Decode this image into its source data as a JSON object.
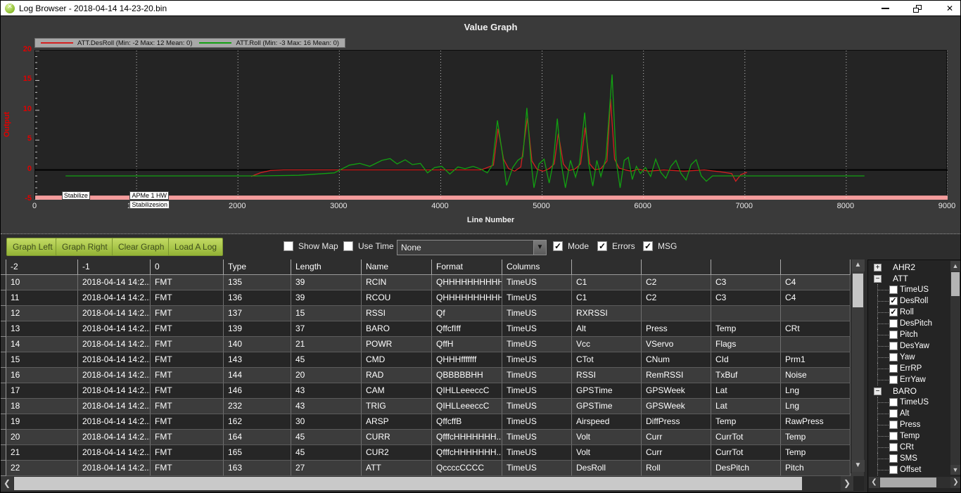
{
  "window": {
    "title": "Log Browser - 2018-04-14 14-23-20.bin"
  },
  "icons": {
    "app": "green-sphere",
    "minimize": "minimize-bar",
    "restore": "restore-squares",
    "close": "✕",
    "dropdown_arrow": "▼",
    "check": "✓",
    "expand": "+",
    "collapse": "−",
    "scroll_up": "▲",
    "scroll_down": "▼",
    "scroll_left": "❮",
    "scroll_right": "❯"
  },
  "chart_data": {
    "type": "line",
    "title": "Value Graph",
    "xlabel": "Line Number",
    "ylabel": "Output",
    "xlim": [
      0,
      9000
    ],
    "ylim": [
      -5,
      20
    ],
    "xticks": [
      0,
      1000,
      2000,
      3000,
      4000,
      5000,
      6000,
      7000,
      8000,
      9000
    ],
    "yticks": [
      -5,
      0,
      5,
      10,
      15,
      20
    ],
    "grid": "vertical-dotted",
    "legend_position": "top-left",
    "series": [
      {
        "name": "ATT.DesRoll (Min: -2 Max: 12 Mean: 0)",
        "color": "#d42020",
        "points": [
          [
            2130,
            -1.1
          ],
          [
            2220,
            -0.5
          ],
          [
            2320,
            -0.1
          ],
          [
            2450,
            0
          ],
          [
            3500,
            0
          ],
          [
            4400,
            0
          ],
          [
            4520,
            0.8
          ],
          [
            4565,
            6.9
          ],
          [
            4620,
            1.8
          ],
          [
            4670,
            0.2
          ],
          [
            4730,
            -0.2
          ],
          [
            4790,
            0.5
          ],
          [
            4855,
            8.7
          ],
          [
            4900,
            1.5
          ],
          [
            4950,
            0.1
          ],
          [
            5010,
            -0.2
          ],
          [
            5070,
            0.2
          ],
          [
            5120,
            1.0
          ],
          [
            5160,
            6.1
          ],
          [
            5210,
            1.0
          ],
          [
            5260,
            -0.1
          ],
          [
            5320,
            0.1
          ],
          [
            5380,
            1.0
          ],
          [
            5425,
            7.1
          ],
          [
            5470,
            1.0
          ],
          [
            5520,
            0
          ],
          [
            5580,
            0.2
          ],
          [
            5640,
            1.5
          ],
          [
            5675,
            11.9
          ],
          [
            5715,
            1.8
          ],
          [
            5760,
            0.3
          ],
          [
            5820,
            0
          ],
          [
            5880,
            -0.2
          ],
          [
            5950,
            0.1
          ],
          [
            6050,
            -0.2
          ],
          [
            6200,
            0
          ],
          [
            6400,
            -0.2
          ],
          [
            6600,
            0
          ],
          [
            6750,
            -0.3
          ],
          [
            6870,
            -0.6
          ],
          [
            6910,
            -1.9
          ],
          [
            6960,
            -0.8
          ],
          [
            7020,
            -0.4
          ]
        ]
      },
      {
        "name": "ATT.Roll (Min: -3 Max: 16 Mean: 0)",
        "color": "#12a012",
        "points": [
          [
            300,
            -1
          ],
          [
            1500,
            -1
          ],
          [
            2200,
            -1
          ],
          [
            2600,
            -0.9
          ],
          [
            2950,
            -0.5
          ],
          [
            3100,
            0.8
          ],
          [
            3200,
            1.1
          ],
          [
            3300,
            0.6
          ],
          [
            3420,
            1.6
          ],
          [
            3500,
            1.9
          ],
          [
            3570,
            1.0
          ],
          [
            3650,
            1.7
          ],
          [
            3720,
            0.9
          ],
          [
            3800,
            1.1
          ],
          [
            3870,
            -0.5
          ],
          [
            3940,
            0.4
          ],
          [
            4010,
            0.6
          ],
          [
            4090,
            -0.7
          ],
          [
            4170,
            0.5
          ],
          [
            4240,
            0.2
          ],
          [
            4320,
            0.6
          ],
          [
            4400,
            0.1
          ],
          [
            4460,
            -0.5
          ],
          [
            4510,
            0.8
          ],
          [
            4560,
            8.3
          ],
          [
            4610,
            2.5
          ],
          [
            4650,
            -2.6
          ],
          [
            4710,
            0.4
          ],
          [
            4760,
            1.6
          ],
          [
            4810,
            2.2
          ],
          [
            4850,
            10.4
          ],
          [
            4890,
            1.5
          ],
          [
            4920,
            -3
          ],
          [
            4970,
            1.0
          ],
          [
            5020,
            1.8
          ],
          [
            5070,
            -2.2
          ],
          [
            5110,
            1.2
          ],
          [
            5150,
            8.6
          ],
          [
            5190,
            1.0
          ],
          [
            5230,
            -3
          ],
          [
            5280,
            1.6
          ],
          [
            5330,
            -1.2
          ],
          [
            5370,
            1.2
          ],
          [
            5420,
            9.6
          ],
          [
            5460,
            1.0
          ],
          [
            5500,
            -2.7
          ],
          [
            5540,
            1.6
          ],
          [
            5580,
            -1.1
          ],
          [
            5630,
            2.0
          ],
          [
            5690,
            16
          ],
          [
            5730,
            1.5
          ],
          [
            5770,
            -3
          ],
          [
            5810,
            1.6
          ],
          [
            5850,
            2.1
          ],
          [
            5890,
            -1.6
          ],
          [
            5930,
            0.6
          ],
          [
            5970,
            -0.6
          ],
          [
            6020,
            0.4
          ],
          [
            6070,
            -1.1
          ],
          [
            6120,
            1.8
          ],
          [
            6170,
            -0.4
          ],
          [
            6220,
            -1.4
          ],
          [
            6270,
            0.6
          ],
          [
            6320,
            1.6
          ],
          [
            6370,
            -0.6
          ],
          [
            6420,
            -1.7
          ],
          [
            6470,
            0.9
          ],
          [
            6520,
            1.7
          ],
          [
            6570,
            -1.0
          ],
          [
            6620,
            -1.9
          ],
          [
            6680,
            -1.0
          ],
          [
            6800,
            -1
          ],
          [
            7200,
            -1
          ],
          [
            7800,
            -1
          ],
          [
            8180,
            -1
          ]
        ]
      }
    ],
    "mode_band": {
      "color": "#f49c9c",
      "from": -5,
      "to": -4.3
    },
    "mode_labels": [
      {
        "text": "Stabilize",
        "x": 270,
        "row": 0
      },
      {
        "text": "APMe 1 HW",
        "x": 940,
        "row": 0
      },
      {
        "text": "Stabilizesion",
        "x": 940,
        "row": 1
      }
    ]
  },
  "toolbar": {
    "buttons": [
      "Graph Left",
      "Graph Right",
      "Clear Graph",
      "Load A Log"
    ],
    "left_checkboxes": [
      {
        "label": "Show Map",
        "checked": false
      },
      {
        "label": "Use Time",
        "checked": false
      }
    ],
    "dropdown": {
      "value": "None"
    },
    "right_checkboxes": [
      {
        "label": "Mode",
        "checked": true
      },
      {
        "label": "Errors",
        "checked": true
      },
      {
        "label": "MSG",
        "checked": true
      }
    ]
  },
  "table": {
    "headers": [
      "-2",
      "-1",
      "0",
      "Type",
      "Length",
      "Name",
      "Format",
      "Columns",
      "",
      "",
      "",
      ""
    ],
    "rows": [
      [
        "10",
        "2018-04-14 14:2...",
        "FMT",
        "135",
        "39",
        "RCIN",
        "QHHHHHHHHHH...",
        "TimeUS",
        "C1",
        "C2",
        "C3",
        "C4"
      ],
      [
        "11",
        "2018-04-14 14:2...",
        "FMT",
        "136",
        "39",
        "RCOU",
        "QHHHHHHHHHH...",
        "TimeUS",
        "C1",
        "C2",
        "C3",
        "C4"
      ],
      [
        "12",
        "2018-04-14 14:2...",
        "FMT",
        "137",
        "15",
        "RSSI",
        "Qf",
        "TimeUS",
        "RXRSSI",
        "",
        "",
        ""
      ],
      [
        "13",
        "2018-04-14 14:2...",
        "FMT",
        "139",
        "37",
        "BARO",
        "QffcfIff",
        "TimeUS",
        "Alt",
        "Press",
        "Temp",
        "CRt"
      ],
      [
        "14",
        "2018-04-14 14:2...",
        "FMT",
        "140",
        "21",
        "POWR",
        "QffH",
        "TimeUS",
        "Vcc",
        "VServo",
        "Flags",
        ""
      ],
      [
        "15",
        "2018-04-14 14:2...",
        "FMT",
        "143",
        "45",
        "CMD",
        "QHHHfffffff",
        "TimeUS",
        "CTot",
        "CNum",
        "CId",
        "Prm1"
      ],
      [
        "16",
        "2018-04-14 14:2...",
        "FMT",
        "144",
        "20",
        "RAD",
        "QBBBBBHH",
        "TimeUS",
        "RSSI",
        "RemRSSI",
        "TxBuf",
        "Noise"
      ],
      [
        "17",
        "2018-04-14 14:2...",
        "FMT",
        "146",
        "43",
        "CAM",
        "QIHLLeeeccC",
        "TimeUS",
        "GPSTime",
        "GPSWeek",
        "Lat",
        "Lng"
      ],
      [
        "18",
        "2018-04-14 14:2...",
        "FMT",
        "232",
        "43",
        "TRIG",
        "QIHLLeeeccC",
        "TimeUS",
        "GPSTime",
        "GPSWeek",
        "Lat",
        "Lng"
      ],
      [
        "19",
        "2018-04-14 14:2...",
        "FMT",
        "162",
        "30",
        "ARSP",
        "QffcffB",
        "TimeUS",
        "Airspeed",
        "DiffPress",
        "Temp",
        "RawPress"
      ],
      [
        "20",
        "2018-04-14 14:2...",
        "FMT",
        "164",
        "45",
        "CURR",
        "QfffcHHHHHHH...",
        "TimeUS",
        "Volt",
        "Curr",
        "CurrTot",
        "Temp"
      ],
      [
        "21",
        "2018-04-14 14:2...",
        "FMT",
        "165",
        "45",
        "CUR2",
        "QfffcHHHHHHH...",
        "TimeUS",
        "Volt",
        "Curr",
        "CurrTot",
        "Temp"
      ],
      [
        "22",
        "2018-04-14 14:2...",
        "FMT",
        "163",
        "27",
        "ATT",
        "QccccCCCC",
        "TimeUS",
        "DesRoll",
        "Roll",
        "DesPitch",
        "Pitch"
      ]
    ]
  },
  "tree": {
    "groups": [
      {
        "label": "AHR2",
        "expanded": false,
        "children": []
      },
      {
        "label": "ATT",
        "expanded": true,
        "children": [
          {
            "label": "TimeUS",
            "checked": false
          },
          {
            "label": "DesRoll",
            "checked": true
          },
          {
            "label": "Roll",
            "checked": true
          },
          {
            "label": "DesPitch",
            "checked": false
          },
          {
            "label": "Pitch",
            "checked": false
          },
          {
            "label": "DesYaw",
            "checked": false
          },
          {
            "label": "Yaw",
            "checked": false
          },
          {
            "label": "ErrRP",
            "checked": false
          },
          {
            "label": "ErrYaw",
            "checked": false
          }
        ]
      },
      {
        "label": "BARO",
        "expanded": true,
        "children": [
          {
            "label": "TimeUS",
            "checked": false
          },
          {
            "label": "Alt",
            "checked": false
          },
          {
            "label": "Press",
            "checked": false
          },
          {
            "label": "Temp",
            "checked": false
          },
          {
            "label": "CRt",
            "checked": false
          },
          {
            "label": "SMS",
            "checked": false
          },
          {
            "label": "Offset",
            "checked": false
          }
        ]
      }
    ]
  }
}
